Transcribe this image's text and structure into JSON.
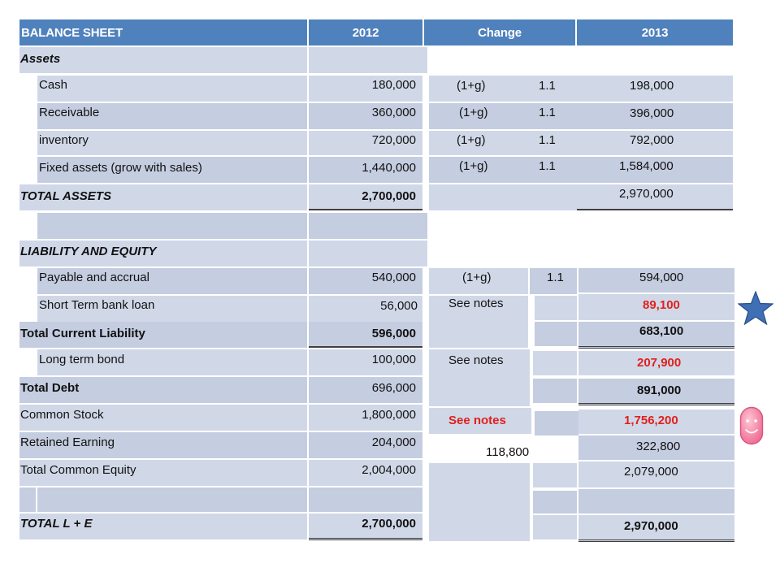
{
  "header": {
    "title": "BALANCE SHEET",
    "col_2012": "2012",
    "col_change": "Change",
    "col_2013": "2013"
  },
  "rows": {
    "assets": {
      "label": "Assets"
    },
    "cash": {
      "label": "Cash",
      "v2012": "180,000",
      "growth": "(1+g)",
      "factor": "1.1",
      "v2013": "198,000"
    },
    "receivable": {
      "label": "Receivable",
      "v2012": "360,000",
      "growth": "(1+g)",
      "factor": "1.1",
      "v2013": "396,000"
    },
    "inventory": {
      "label": "inventory",
      "v2012": "720,000",
      "growth": "(1+g)",
      "factor": "1.1",
      "v2013": "792,000"
    },
    "fixed_assets": {
      "label": "Fixed assets (grow with sales)",
      "v2012": "1,440,000",
      "growth": "(1+g)",
      "factor": "1.1",
      "v2013": "1,584,000"
    },
    "total_assets": {
      "label": "TOTAL ASSETS",
      "v2012": "2,700,000",
      "v2013": "2,970,000"
    },
    "liab_equity": {
      "label": "LIABILITY AND EQUITY"
    },
    "payable": {
      "label": "Payable and accrual",
      "v2012": "540,000",
      "growth": "(1+g)",
      "factor": "1.1",
      "v2013": "594,000"
    },
    "st_loan": {
      "label": "Short Term bank loan",
      "v2012": "56,000",
      "note": "See notes",
      "v2013": "89,100"
    },
    "total_cl": {
      "label": "Total Current Liability",
      "v2012": "596,000",
      "v2013": "683,100"
    },
    "lt_bond": {
      "label": "Long term bond",
      "v2012": "100,000",
      "note": "See notes",
      "v2013": "207,900"
    },
    "total_debt": {
      "label": "Total Debt",
      "v2012": "696,000",
      "v2013": "891,000"
    },
    "common_stock": {
      "label": "Common Stock",
      "v2012": "1,800,000",
      "note": "See notes",
      "v2013": "1,756,200"
    },
    "retained": {
      "label": "Retained Earning",
      "v2012": "204,000",
      "change": "118,800",
      "v2013": "322,800"
    },
    "total_ce": {
      "label": "Total Common Equity",
      "v2012": "2,004,000",
      "v2013": "2,079,000"
    },
    "total_le": {
      "label": "TOTAL  L + E",
      "v2012": "2,700,000",
      "v2013": "2,970,000"
    }
  },
  "colors": {
    "header_blue": "#4f81bd",
    "cell_light": "#d0d8e8",
    "cell_dark": "#c5cde0",
    "highlight_red": "#e0201c",
    "star_blue": "#3f6fb5",
    "smiley_pink": "#f48ca8"
  },
  "icons": {
    "star": "star-icon",
    "smiley": "smiley-face-icon"
  }
}
